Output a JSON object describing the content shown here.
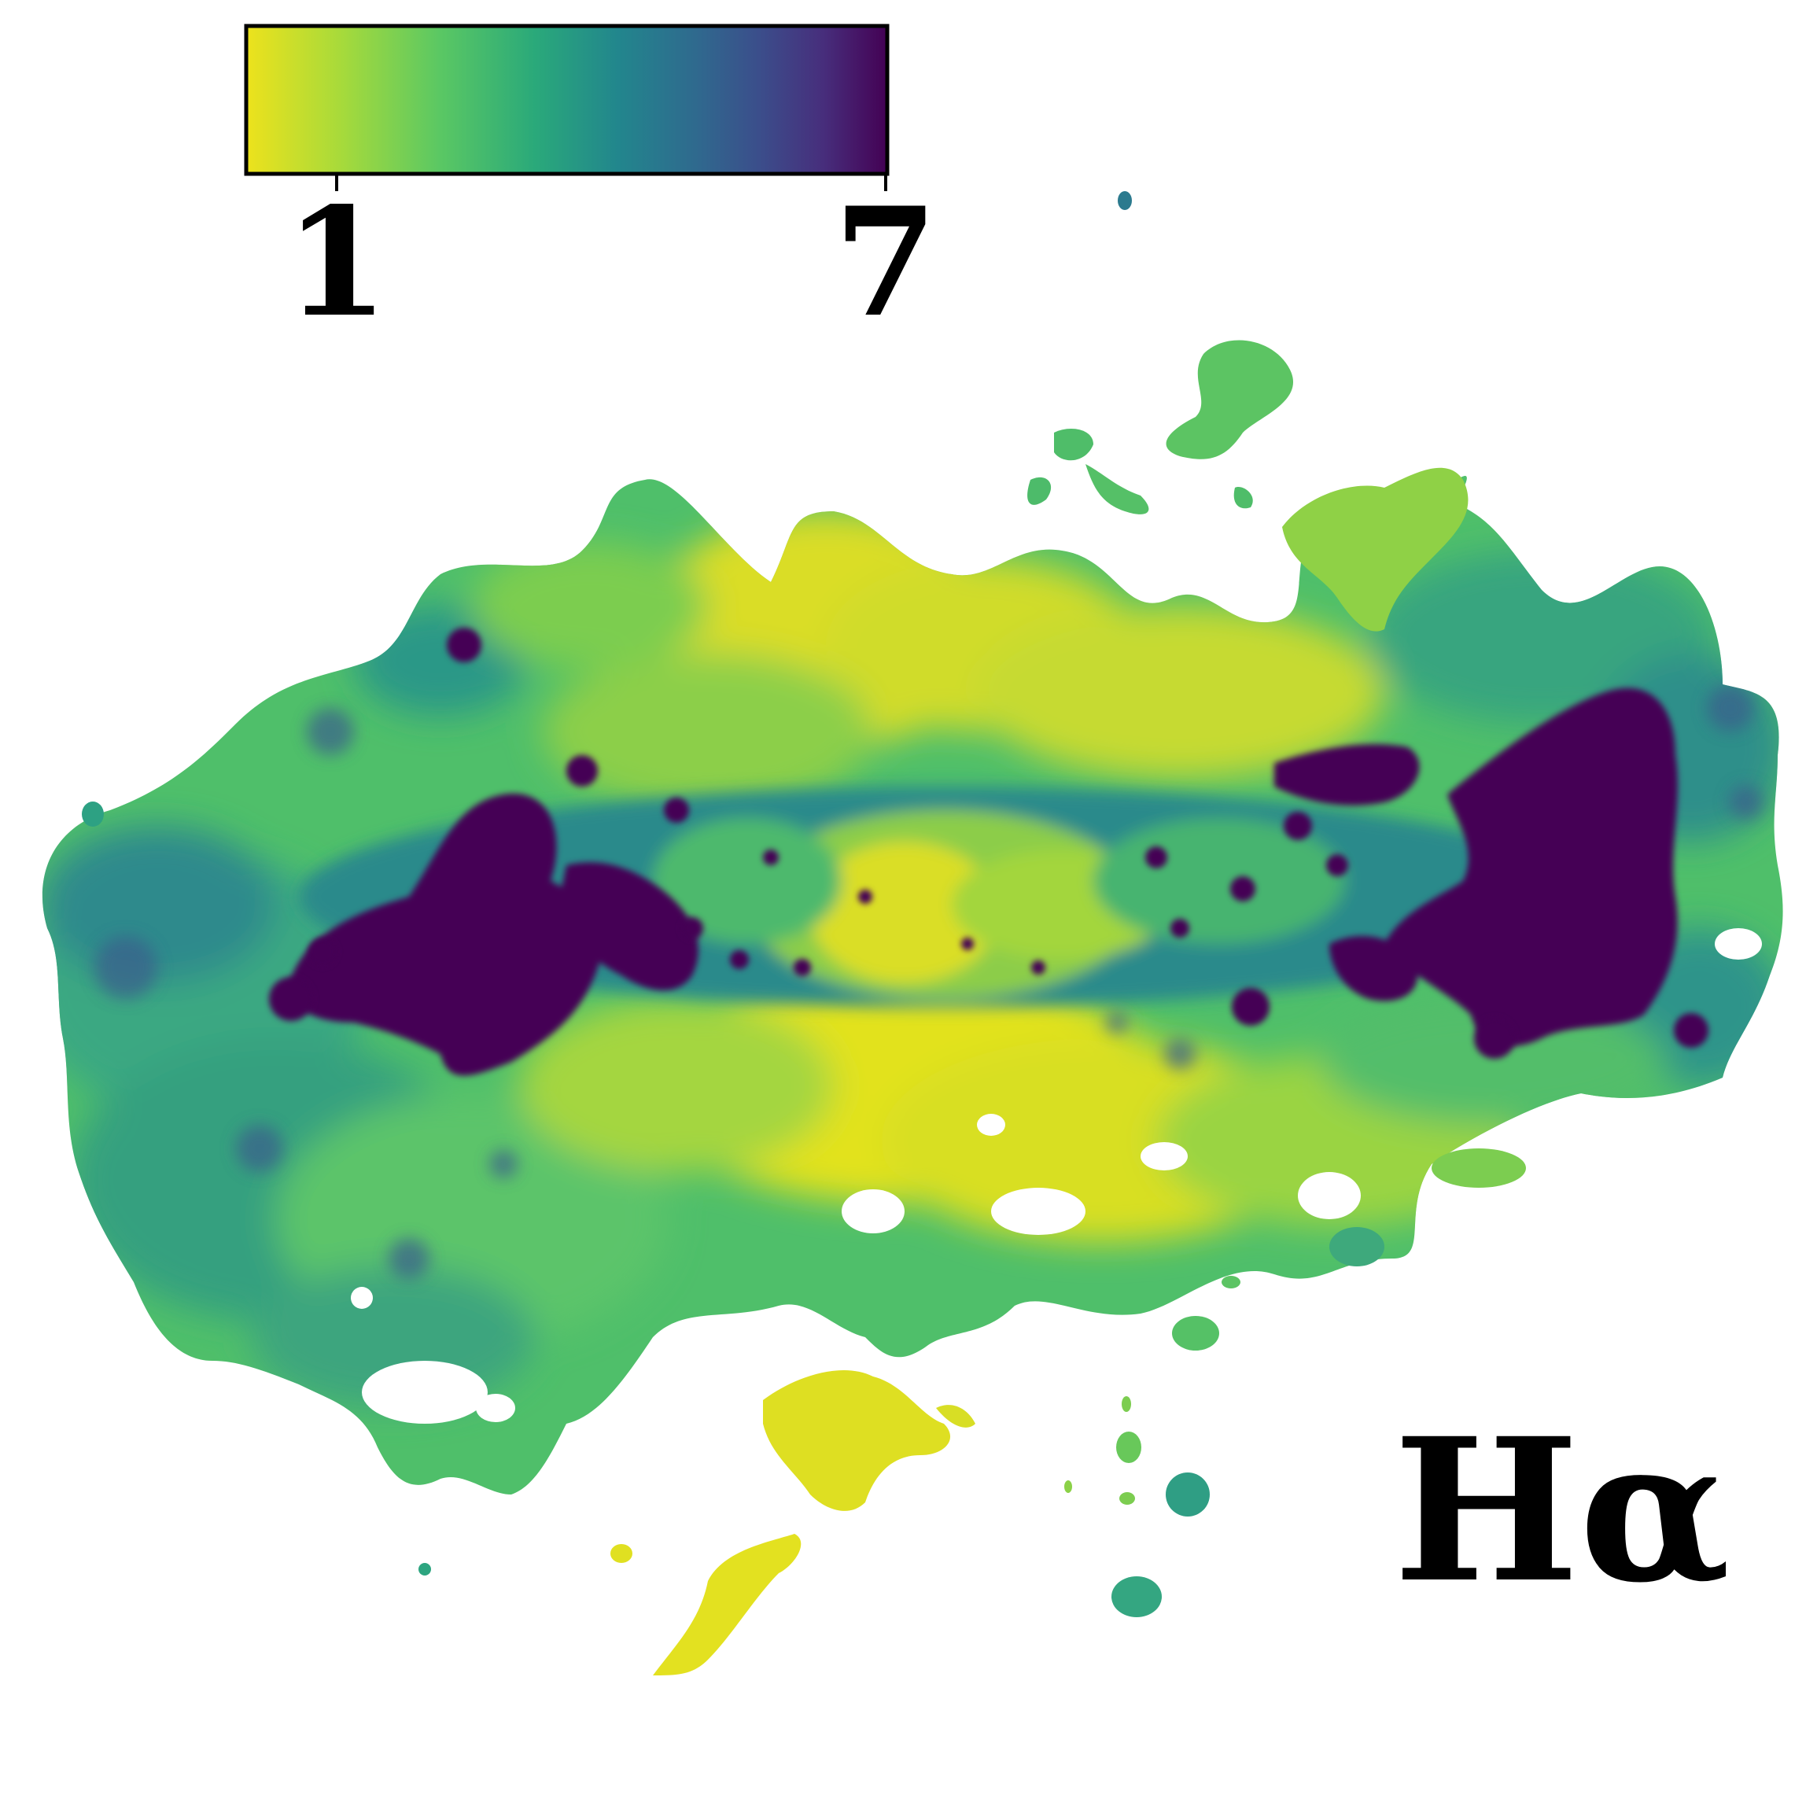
{
  "colorbar": {
    "tick_min_label": "1",
    "tick_max_label": "7",
    "colormap": "viridis-reversed",
    "stops": [
      "#ede21c",
      "#a6da3b",
      "#5bc863",
      "#2aa97a",
      "#22868d",
      "#2f6a8e",
      "#3b4e8b",
      "#472e7c",
      "#440154"
    ]
  },
  "panel_label": "Hα",
  "palette": {
    "yellow": "#e6e21e",
    "light_green": "#9bd63e",
    "green": "#5cc564",
    "teal": "#2d9c86",
    "blue_teal": "#2b7a8e",
    "dark_blue": "#3c4d8a",
    "dark_purple": "#440154"
  }
}
